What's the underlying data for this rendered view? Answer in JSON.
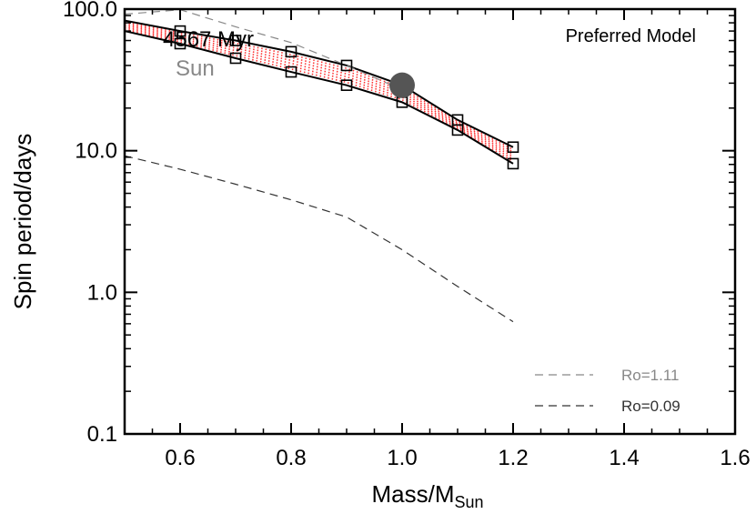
{
  "chart_data": {
    "type": "line",
    "title": "",
    "xlabel": "Mass/M",
    "xlabel_sub": "Sun",
    "ylabel": "Spin period/days",
    "xlim": [
      0.5,
      1.6
    ],
    "ylim": [
      0.1,
      100
    ],
    "y_scale": "log",
    "x_ticks": [
      0.6,
      0.8,
      1.0,
      1.2,
      1.4,
      1.6
    ],
    "x_tick_labels": [
      "0.6",
      "0.8",
      "1.0",
      "1.2",
      "1.4",
      "1.6"
    ],
    "y_ticks": [
      0.1,
      1,
      10,
      100
    ],
    "y_tick_labels": [
      "0.1",
      "1.0",
      "10.0",
      "100.0"
    ],
    "model_label": "Preferred Model",
    "age_label": "4567 Myr",
    "sun_label": "Sun",
    "sun_point": {
      "x": 1.0,
      "y": 29,
      "color": "#555555"
    },
    "band": {
      "upper": {
        "x": [
          0.5,
          0.6,
          0.7,
          0.8,
          0.9,
          1.0,
          1.1,
          1.2
        ],
        "y": [
          83,
          70,
          60,
          50,
          40,
          29,
          16.5,
          10.6
        ]
      },
      "lower": {
        "x": [
          0.5,
          0.6,
          0.7,
          0.8,
          0.9,
          1.0,
          1.1,
          1.2
        ],
        "y": [
          70,
          57,
          45,
          36,
          29,
          22,
          14,
          8.1
        ]
      },
      "fill_color": "#ff3333"
    },
    "series": [
      {
        "name": "Ro=1.11",
        "style": "dashed",
        "color": "#888888",
        "x": [
          0.5,
          0.6,
          0.7,
          0.8,
          0.9,
          1.0
        ],
        "y": [
          92,
          99,
          75,
          58,
          40,
          27
        ]
      },
      {
        "name": "Ro=0.09",
        "style": "dashed",
        "color": "#333333",
        "x": [
          0.5,
          0.6,
          0.7,
          0.8,
          0.9,
          1.0,
          1.1,
          1.2
        ],
        "y": [
          9.2,
          7.4,
          5.8,
          4.5,
          3.4,
          2.0,
          1.1,
          0.62
        ]
      }
    ],
    "legend_position": "bottom-right"
  }
}
